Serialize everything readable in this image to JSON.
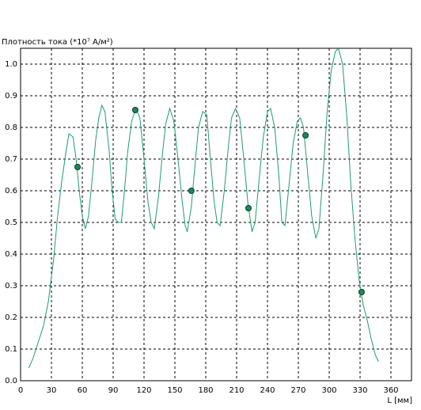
{
  "chart_data": {
    "type": "line",
    "y_label": "Плотность тока (*10⁷ А/м²)",
    "x_label": "L [мм]",
    "xlim": [
      0,
      380
    ],
    "ylim": [
      0,
      1.05
    ],
    "xticks": [
      0,
      30,
      60,
      90,
      120,
      150,
      180,
      210,
      240,
      270,
      300,
      330,
      360
    ],
    "yticks": [
      {
        "value": 0,
        "label": "0.0"
      },
      0.1,
      0.2,
      0.3,
      0.4,
      0.5,
      0.6,
      0.7,
      0.8,
      0.9,
      {
        "value": 1,
        "label": "1.0"
      }
    ],
    "grid": true,
    "series": [
      {
        "color": "#1f9c6c",
        "x": [
          8,
          12,
          17,
          22,
          27,
          32,
          36,
          40,
          44,
          47,
          51,
          54,
          57,
          60,
          63,
          66,
          70,
          73,
          76,
          79,
          82,
          86,
          89,
          92,
          95,
          98,
          101,
          104,
          108,
          112,
          116,
          120,
          124,
          127,
          130,
          134,
          138,
          141,
          145,
          149,
          153,
          157,
          160,
          162,
          166,
          170,
          173,
          177,
          181,
          184,
          188,
          191,
          194,
          198,
          202,
          205,
          209,
          213,
          217,
          221,
          225,
          228,
          232,
          236,
          240,
          243,
          247,
          251,
          254,
          257,
          261,
          265,
          269,
          272,
          275,
          279,
          283,
          287,
          290,
          294,
          298,
          302,
          306,
          309,
          313,
          317,
          321,
          325,
          329,
          333,
          337,
          341,
          345,
          348
        ],
        "values": [
          0.04,
          0.07,
          0.12,
          0.17,
          0.25,
          0.38,
          0.52,
          0.63,
          0.72,
          0.78,
          0.77,
          0.7,
          0.6,
          0.52,
          0.48,
          0.52,
          0.65,
          0.76,
          0.83,
          0.87,
          0.85,
          0.73,
          0.6,
          0.51,
          0.5,
          0.5,
          0.6,
          0.72,
          0.82,
          0.86,
          0.83,
          0.7,
          0.56,
          0.5,
          0.48,
          0.58,
          0.72,
          0.81,
          0.86,
          0.82,
          0.7,
          0.57,
          0.49,
          0.47,
          0.55,
          0.7,
          0.8,
          0.85,
          0.84,
          0.72,
          0.57,
          0.5,
          0.49,
          0.6,
          0.74,
          0.83,
          0.86,
          0.83,
          0.7,
          0.56,
          0.47,
          0.5,
          0.64,
          0.77,
          0.85,
          0.86,
          0.8,
          0.65,
          0.5,
          0.49,
          0.62,
          0.75,
          0.82,
          0.83,
          0.8,
          0.66,
          0.52,
          0.45,
          0.48,
          0.65,
          0.85,
          0.98,
          1.04,
          1.05,
          1.0,
          0.84,
          0.62,
          0.45,
          0.32,
          0.24,
          0.19,
          0.13,
          0.08,
          0.06
        ]
      },
      {
        "type": "scatter",
        "color": "#1a8a5a",
        "x": [
          55.4,
          111.5,
          166,
          221.5,
          277,
          331.5
        ],
        "values": [
          0.675,
          0.855,
          0.6,
          0.545,
          0.775,
          0.28
        ]
      }
    ]
  }
}
